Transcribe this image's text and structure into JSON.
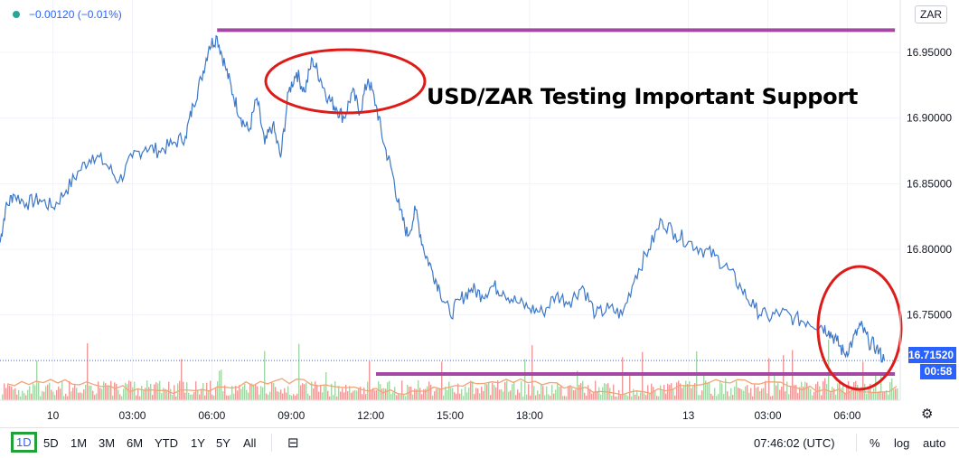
{
  "header": {
    "change_text": "−0.00120 (−0.01%)",
    "currency": "ZAR"
  },
  "annotation": {
    "title": "USD/ZAR Testing Important Support"
  },
  "last_price": {
    "value": "16.71520",
    "countdown": "00:58"
  },
  "toolbar": {
    "timeframes": [
      "1D",
      "5D",
      "1M",
      "3M",
      "6M",
      "YTD",
      "1Y",
      "5Y",
      "All"
    ],
    "active_timeframe": "1D",
    "clock": "07:46:02 (UTC)",
    "percent_label": "%",
    "log_label": "log",
    "auto_label": "auto"
  },
  "colors": {
    "line": "#3d78c9",
    "resistance": "#a349a4",
    "circle": "#dd1c1a",
    "volume_up": "#a5d6a7",
    "volume_down": "#ef9a9a",
    "volume_ma": "#f2a477",
    "accent": "#2962ff"
  },
  "chart_data": {
    "type": "line",
    "title": "USD/ZAR Testing Important Support",
    "y_axis": {
      "ticks": [
        "16.95000",
        "16.90000",
        "16.85000",
        "16.80000",
        "16.75000"
      ],
      "tick_values": [
        16.95,
        16.9,
        16.85,
        16.8,
        16.75
      ],
      "range": [
        16.685,
        16.99
      ],
      "position": "right"
    },
    "x_axis": {
      "ticks": [
        "10",
        "03:00",
        "06:00",
        "09:00",
        "12:00",
        "15:00",
        "18:00",
        "13",
        "03:00",
        "06:00"
      ],
      "tick_hours": [
        0,
        3,
        6,
        9,
        12,
        15,
        18,
        24,
        27,
        30
      ],
      "range_hours": [
        -2,
        32
      ]
    },
    "series": [
      {
        "x_hours": [
          -2.0,
          -1.8,
          -1.5,
          -1.0,
          -0.5,
          0.0,
          0.5,
          1.0,
          1.5,
          2.0,
          2.5,
          3.0,
          3.5,
          4.0,
          4.5,
          5.0,
          5.3,
          5.6,
          5.9,
          6.2,
          6.5,
          6.8,
          7.1,
          7.4,
          7.7,
          8.0,
          8.3,
          8.6,
          8.9,
          9.2,
          9.5,
          9.8,
          10.1,
          10.4,
          10.7,
          11.0,
          11.3,
          11.6,
          11.9,
          12.2,
          12.5,
          12.8,
          13.1,
          13.4,
          13.7,
          14.0,
          14.3,
          14.6,
          15.0,
          15.4,
          15.8,
          16.2,
          16.6,
          17.0,
          17.5,
          18.0,
          18.5,
          19.0,
          19.5,
          20.0,
          20.5,
          21.0,
          21.5,
          22.0,
          22.5,
          23.0,
          23.5,
          24.0,
          24.5,
          25.0,
          25.5,
          26.0,
          26.5,
          27.0,
          27.5,
          28.0,
          28.5,
          29.0,
          29.3,
          29.6,
          29.9,
          30.2,
          30.5,
          30.8,
          31.1,
          31.4
        ],
        "values": [
          16.805,
          16.83,
          16.842,
          16.835,
          16.838,
          16.832,
          16.845,
          16.86,
          16.872,
          16.865,
          16.852,
          16.87,
          16.878,
          16.875,
          16.88,
          16.886,
          16.91,
          16.93,
          16.955,
          16.962,
          16.94,
          16.918,
          16.9,
          16.89,
          16.915,
          16.88,
          16.895,
          16.87,
          16.92,
          16.935,
          16.92,
          16.945,
          16.93,
          16.915,
          16.908,
          16.9,
          16.92,
          16.905,
          16.93,
          16.91,
          16.88,
          16.86,
          16.83,
          16.81,
          16.83,
          16.8,
          16.785,
          16.77,
          16.75,
          16.762,
          16.77,
          16.765,
          16.772,
          16.768,
          16.76,
          16.755,
          16.752,
          16.765,
          16.76,
          16.772,
          16.75,
          16.755,
          16.75,
          16.78,
          16.8,
          16.822,
          16.812,
          16.806,
          16.8,
          16.795,
          16.785,
          16.77,
          16.755,
          16.748,
          16.752,
          16.747,
          16.745,
          16.742,
          16.738,
          16.73,
          16.72,
          16.73,
          16.742,
          16.73,
          16.725,
          16.7152
        ]
      }
    ],
    "resistance_level": 16.967,
    "support_level": 16.705,
    "last_value": 16.7152,
    "grid": true,
    "legend": "none"
  }
}
